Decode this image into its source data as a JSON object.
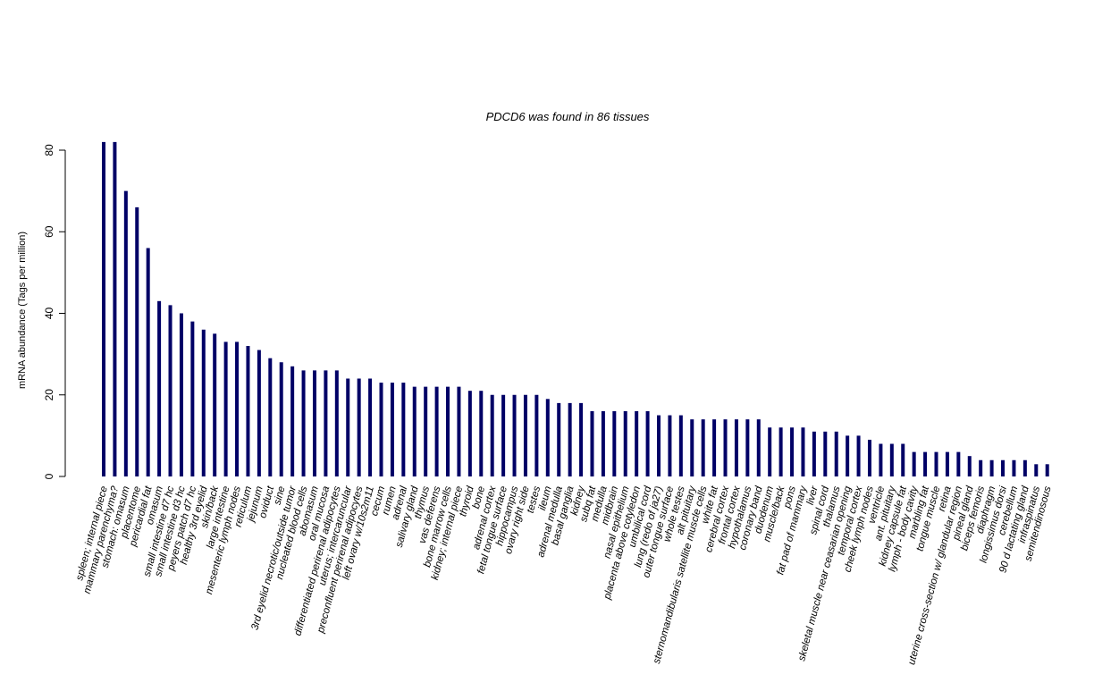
{
  "chart_data": {
    "type": "bar",
    "title": "PDCD6  was found in  86  tissues",
    "xlabel": "",
    "ylabel": "mRNA abundance (Tags per million)",
    "ylim": [
      0,
      82
    ],
    "yticks": [
      0,
      20,
      40,
      60,
      80
    ],
    "grid": false,
    "bar_color": "#000066",
    "categories": [
      "spleen; internal piece",
      "mammary parenchyma?",
      "stomach: omasum",
      "placentome",
      "pericardial fat",
      "omasum",
      "small intestine d7 hc",
      "small intestine d3 hc",
      "peyers patch d7 hc",
      "healthy 3rd eyelid",
      "skin/back",
      "large intestine",
      "mesenteric lymph nodes",
      "reticulum",
      "jejunum",
      "oviduct",
      "sine",
      "3rd eyelid necrotic/outside tumor",
      "nucleated blood cells",
      "abomasum",
      "oral mucosa",
      "differentiated perirenal adipocytes",
      "uterus; intercaruncular",
      "preconfluent perirenal adipocytes",
      "left ovary w/10s2m11",
      "cecum",
      "rumen",
      "adrenal",
      "salivary gland",
      "thymus",
      "vas deferens",
      "bone marrow cells",
      "kidney; internal piece",
      "thyroid",
      "bone",
      "adrenal cortex",
      "fetal tongue surface",
      "hippocampus",
      "ovary right side",
      "testes",
      "ileum",
      "adrenal medulla",
      "basal ganglia",
      "kidney",
      "subq fat",
      "medulla",
      "midbrain",
      "nasal epithelium",
      "placenta above cotyledon",
      "umbilical cord",
      "lung (redo of ja27)",
      "outer tongue surface",
      "whole testes",
      "alt pituitary",
      "sternomandibularis satellite muscle cells",
      "white fat",
      "cerebral cortex",
      "frontal cortex",
      "hypothalamus",
      "coronary band",
      "duodenum",
      "muscle/back",
      "pons",
      "fat pad of mammary",
      "liver",
      "spinal cord",
      "thalamus",
      "skeletal muscle near ceasarian opening",
      "temporal cortex",
      "cheek lymph nodes",
      "ventricle",
      "ant. pituitary",
      "kidney capsule fat",
      "lymph - body cavity",
      "marbling fat",
      "tongue muscle",
      "retina",
      "uterine cross-section w/ glandular region",
      "pineal gland",
      "biceps femoris",
      "diaphragm",
      "longissimus dorsi",
      "cerebellum",
      "90 d lactating gland",
      "infraspinatus",
      "semitendinosous"
    ],
    "values": [
      82,
      82,
      70,
      66,
      56,
      43,
      42,
      40,
      38,
      36,
      35,
      33,
      33,
      32,
      31,
      29,
      28,
      27,
      26,
      26,
      26,
      26,
      24,
      24,
      24,
      23,
      23,
      23,
      22,
      22,
      22,
      22,
      22,
      21,
      21,
      20,
      20,
      20,
      20,
      20,
      19,
      18,
      18,
      18,
      16,
      16,
      16,
      16,
      16,
      16,
      15,
      15,
      15,
      14,
      14,
      14,
      14,
      14,
      14,
      14,
      12,
      12,
      12,
      12,
      11,
      11,
      11,
      10,
      10,
      9,
      8,
      8,
      8,
      6,
      6,
      6,
      6,
      6,
      5,
      4,
      4,
      4,
      4,
      4,
      3,
      3
    ]
  }
}
